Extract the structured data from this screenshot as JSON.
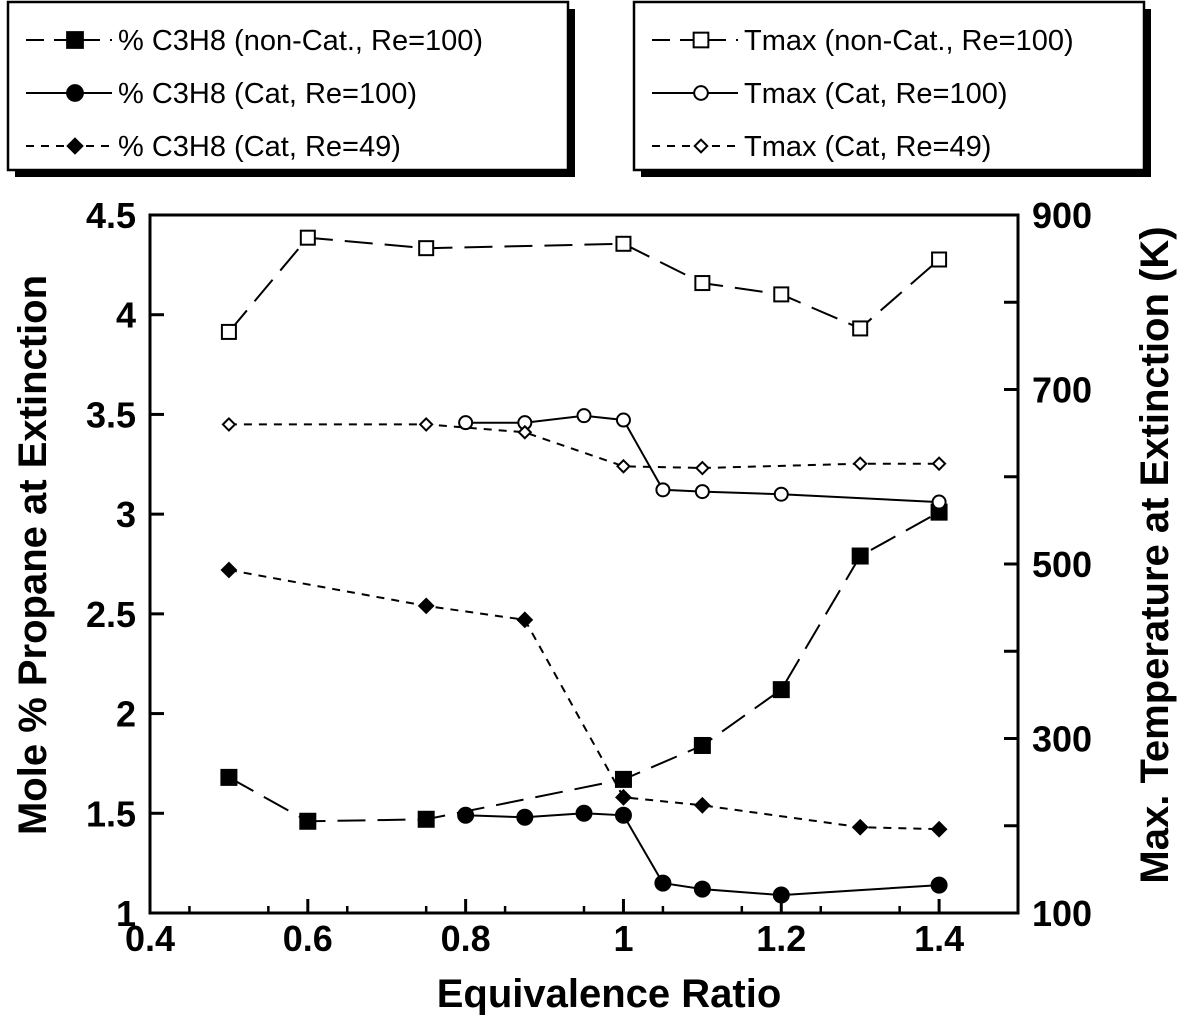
{
  "chart_data": {
    "type": "line",
    "xlabel": "Equivalence Ratio",
    "ylabel_left": "Mole % Propane at Extinction",
    "ylabel_right": "Max. Temperature at Extinction (K)",
    "xlim": [
      0.4,
      1.5
    ],
    "ylim_left": [
      1,
      4.5
    ],
    "ylim_right": [
      100,
      900
    ],
    "x_ticks": [
      "0.4",
      "0.6",
      "0.8",
      "1",
      "1.2",
      "1.4"
    ],
    "y_left_ticks": [
      "1",
      "1.5",
      "2",
      "2.5",
      "3",
      "3.5",
      "4",
      "4.5"
    ],
    "y_right_ticks": [
      "100",
      "300",
      "500",
      "700",
      "900"
    ],
    "grid": false,
    "series": [
      {
        "name": "% C3H8 (non-Cat., Re=100)",
        "axis": "left",
        "marker": "square-filled",
        "line": "long-dash",
        "x": [
          0.5,
          0.6,
          0.75,
          1.0,
          1.1,
          1.2,
          1.3,
          1.4
        ],
        "y": [
          1.68,
          1.46,
          1.47,
          1.67,
          1.84,
          2.12,
          2.79,
          3.01
        ]
      },
      {
        "name": "% C3H8 (Cat, Re=100)",
        "axis": "left",
        "marker": "circle-filled",
        "line": "solid",
        "x": [
          0.8,
          0.875,
          0.95,
          1.0,
          1.05,
          1.1,
          1.2,
          1.4
        ],
        "y": [
          1.49,
          1.48,
          1.5,
          1.49,
          1.15,
          1.12,
          1.09,
          1.14
        ]
      },
      {
        "name": "% C3H8 (Cat, Re=49)",
        "axis": "left",
        "marker": "diamond-filled",
        "line": "short-dash",
        "x": [
          0.5,
          0.75,
          0.875,
          1.0,
          1.1,
          1.3,
          1.4
        ],
        "y": [
          2.72,
          2.54,
          2.47,
          1.58,
          1.54,
          1.43,
          1.42
        ]
      },
      {
        "name": "Tmax (non-Cat., Re=100)",
        "axis": "right",
        "marker": "square-open",
        "line": "long-dash",
        "x": [
          0.5,
          0.6,
          0.75,
          1.0,
          1.1,
          1.2,
          1.3,
          1.4
        ],
        "y": [
          766,
          874,
          862,
          867,
          822,
          809,
          770,
          849
        ]
      },
      {
        "name": "Tmax (Cat, Re=100)",
        "axis": "right",
        "marker": "circle-open",
        "line": "solid",
        "x": [
          0.8,
          0.875,
          0.95,
          1.0,
          1.05,
          1.1,
          1.2,
          1.4
        ],
        "y": [
          662,
          662,
          670,
          665,
          585,
          583,
          580,
          571
        ]
      },
      {
        "name": "Tmax (Cat, Re=49)",
        "axis": "right",
        "marker": "diamond-open",
        "line": "short-dash",
        "x": [
          0.5,
          0.75,
          0.875,
          1.0,
          1.1,
          1.3,
          1.4
        ],
        "y": [
          660,
          660,
          651,
          612,
          610,
          615,
          615
        ]
      }
    ]
  }
}
